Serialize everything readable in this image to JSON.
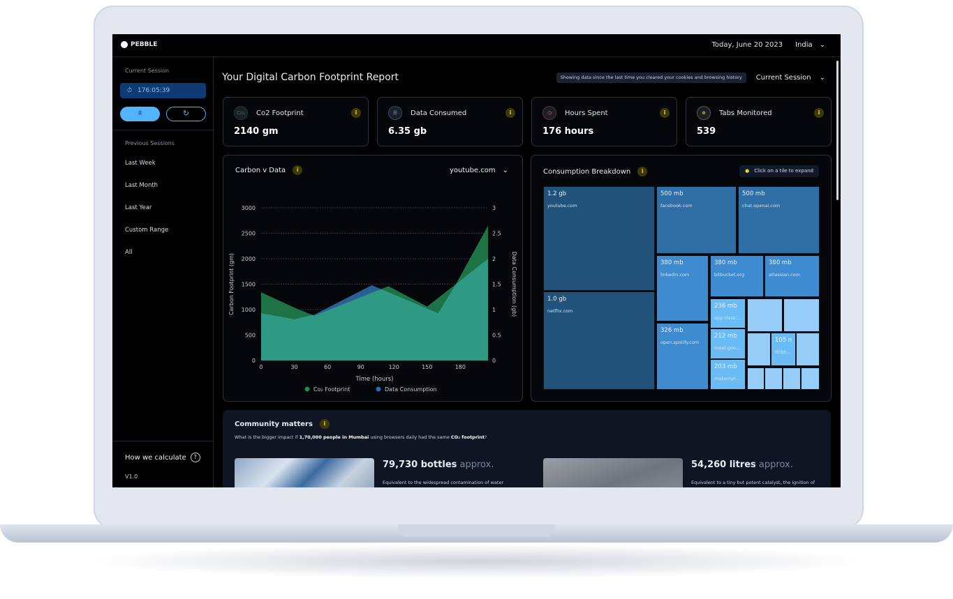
{
  "app": {
    "brand": "PEBBLE",
    "date": "Today, June 20 2023",
    "country": "India"
  },
  "sidebar": {
    "current_session_label": "Current Session",
    "timer": "176:05:39",
    "pause_label": "II",
    "reset_label": "↻",
    "previous_sessions_label": "Previous Sessions",
    "items": [
      {
        "label": "Last Week"
      },
      {
        "label": "Last Month"
      },
      {
        "label": "Last Year"
      },
      {
        "label": "Custom Range"
      },
      {
        "label": "All"
      }
    ],
    "how_label": "How we calculate",
    "help_icon": "?",
    "version": "V1.0"
  },
  "main": {
    "title": "Your Digital Carbon Footprint Report",
    "notice": "Showing data since the last time you cleared your cookies and browsing history",
    "session_select": "Current Session",
    "kpis": [
      {
        "title": "Co2 Footprint",
        "value": "2140 gm",
        "icon": "co2-icon",
        "icon_text": "Co₂",
        "color": "#1f7a4a"
      },
      {
        "title": "Data Consumed",
        "value": "6.35 gb",
        "icon": "database-icon",
        "icon_text": "☰",
        "color": "#5fa8e8"
      },
      {
        "title": "Hours Spent",
        "value": "176 hours",
        "icon": "clock-icon",
        "icon_text": "◷",
        "color": "#e0566a"
      },
      {
        "title": "Tabs Monitored",
        "value": "539",
        "icon": "target-icon",
        "icon_text": "⊕",
        "color": "#e6d23a"
      }
    ]
  },
  "chart_panel": {
    "title": "Carbon v Data",
    "site_select": "youtube.com"
  },
  "chart_data": {
    "type": "area",
    "xlabel": "Time (hours)",
    "ylabel": "Carbon Footprint (gm)",
    "y2label": "Data Consumption (gb)",
    "xlim": [
      0,
      205
    ],
    "ylim": [
      0,
      3000
    ],
    "y2lim": [
      0,
      3
    ],
    "grid": true,
    "legend": "bottom",
    "xticks": [
      "0",
      "30",
      "60",
      "90",
      "120",
      "150",
      "180"
    ],
    "yticks": [
      "0",
      "500",
      "1000",
      "1500",
      "2000",
      "2500",
      "3000"
    ],
    "y2ticks": [
      "0",
      "0.5",
      "1",
      "1.5",
      "2",
      "2.5",
      "3"
    ],
    "series": [
      {
        "name": "Co₂ Footprint",
        "axis": "left",
        "color": "#1d7346",
        "points": [
          [
            0,
            1340
          ],
          [
            30,
            1040
          ],
          [
            48,
            880
          ],
          [
            115,
            1460
          ],
          [
            150,
            1060
          ],
          [
            176,
            1500
          ],
          [
            205,
            2650
          ]
        ]
      },
      {
        "name": "Data Consumption",
        "axis": "right",
        "color": "#2c5f91",
        "points": [
          [
            0,
            0.93
          ],
          [
            30,
            0.81
          ],
          [
            48,
            0.9
          ],
          [
            100,
            1.48
          ],
          [
            160,
            0.93
          ],
          [
            176,
            1.5
          ],
          [
            205,
            2.0
          ]
        ]
      }
    ],
    "overlap_color": "#2e9a84"
  },
  "treemap": {
    "title": "Consumption Breakdown",
    "hint": "Click on a tile to expand",
    "tiles": [
      {
        "size": "1.2 gb",
        "site": "youtube.com"
      },
      {
        "size": "1.0 gb",
        "site": "netflix.com"
      },
      {
        "size": "500 mb",
        "site": "facebook.com"
      },
      {
        "size": "500 mb",
        "site": "chat.openai.com"
      },
      {
        "size": "380 mb",
        "site": "linkedin.com"
      },
      {
        "size": "380 mb",
        "site": "bitbucket.org"
      },
      {
        "size": "380 mb",
        "site": "atlassian.com"
      },
      {
        "size": "326 mb",
        "site": "open.spotify.com"
      },
      {
        "size": "236 mb",
        "site": "app.slack.c..."
      },
      {
        "size": "212 mb",
        "site": "meet.goog..."
      },
      {
        "size": "203 mb",
        "site": "makemytri..."
      },
      {
        "size": "105 mb",
        "site": "dribb..."
      }
    ]
  },
  "community": {
    "title": "Community matters",
    "q_pre": "What is the bigger impact if ",
    "q_bold": "1,70,000 people in Mumbai",
    "q_mid": " using browsers daily had the same ",
    "q_bold2": "CO₂ footprint",
    "q_end": "?",
    "items": [
      {
        "value": "79,730 bottles",
        "suffix": " approx.",
        "desc": "Equivalent to the widespread contamination of water"
      },
      {
        "value": "54,260 litres",
        "suffix": " approx.",
        "desc": "Equivalent to a tiny but potent catalyst, the ignition of"
      }
    ]
  }
}
